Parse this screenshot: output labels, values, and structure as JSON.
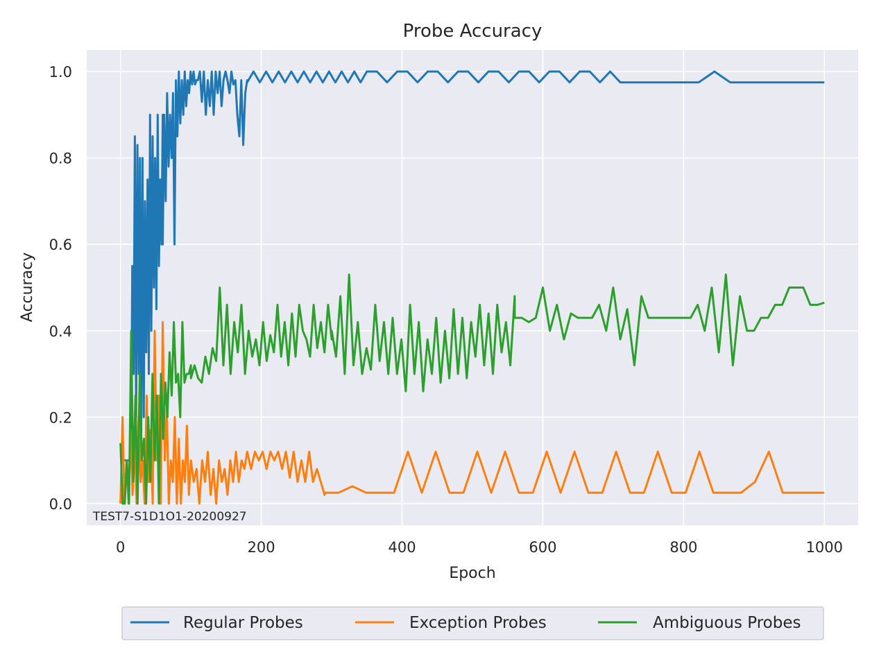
{
  "chart_data": {
    "type": "line",
    "title": "Probe Accuracy",
    "xlabel": "Epoch",
    "ylabel": "Accuracy",
    "xlim": [
      -48,
      1048
    ],
    "ylim": [
      -0.05,
      1.05
    ],
    "x_ticks": [
      0,
      200,
      400,
      600,
      800,
      1000
    ],
    "x_tick_labels": [
      "0",
      "200",
      "400",
      "600",
      "800",
      "1000"
    ],
    "y_ticks": [
      0.0,
      0.2,
      0.4,
      0.6,
      0.8,
      1.0
    ],
    "y_tick_labels": [
      "0.0",
      "0.2",
      "0.4",
      "0.6",
      "0.8",
      "1.0"
    ],
    "grid": true,
    "legend_position": "bottom-center, outside plot",
    "annotation": "TEST7-S1D1O1-20200927",
    "background": "#eaeaf2",
    "series": [
      {
        "name": "Regular Probes",
        "color": "#1f77b4",
        "segments": [
          {
            "x_start": 0,
            "x_end": 15,
            "values": [
              0.1,
              0.1,
              0.1,
              0.1,
              0.1,
              0.1
            ]
          },
          {
            "x_start": 15,
            "x_end": 60,
            "values": [
              0.1,
              0.55,
              0.3,
              0.85,
              0.2,
              0.83,
              0.3,
              0.8,
              0.15,
              0.8,
              0.2,
              0.7,
              0.35,
              0.75,
              0.3,
              0.9,
              0.4,
              0.85,
              0.5,
              0.8,
              0.45,
              0.9,
              0.55,
              0.75,
              0.6,
              0.9
            ]
          },
          {
            "x_start": 60,
            "x_end": 110,
            "values": [
              0.6,
              0.9,
              0.7,
              0.95,
              0.78,
              0.9,
              0.8,
              0.95,
              0.6,
              0.98,
              0.85,
              1.0,
              0.88,
              0.98,
              0.9,
              1.0,
              0.92,
              0.98,
              0.95,
              1.0,
              0.97,
              1.0,
              0.97,
              0.98,
              0.98
            ]
          },
          {
            "x_start": 110,
            "x_end": 180,
            "values": [
              0.98,
              1.0,
              0.93,
              1.0,
              0.9,
              0.98,
              0.92,
              1.0,
              0.9,
              1.0,
              0.95,
              1.0,
              0.92,
              0.98,
              1.0,
              0.98,
              0.95,
              1.0,
              0.97,
              0.98,
              0.9,
              0.85,
              0.98,
              0.83,
              0.95,
              0.98
            ]
          },
          {
            "x_start": 180,
            "x_end": 350,
            "values": [
              0.975,
              1.0,
              0.975,
              1.0,
              0.975,
              1.0,
              0.975,
              1.0,
              0.975,
              1.0,
              0.975,
              1.0,
              0.975,
              1.0,
              0.975,
              1.0,
              0.975,
              1.0,
              0.975,
              1.0
            ]
          },
          {
            "x_start": 350,
            "x_end": 710,
            "values": [
              1.0,
              1.0,
              0.975,
              1.0,
              1.0,
              0.975,
              1.0,
              1.0,
              0.975,
              1.0,
              1.0,
              0.975,
              1.0,
              1.0,
              0.975,
              1.0,
              1.0,
              0.975,
              1.0,
              1.0,
              0.975,
              1.0,
              1.0,
              0.975,
              1.0,
              0.975
            ]
          },
          {
            "x_start": 710,
            "x_end": 1000,
            "values": [
              0.975,
              0.975,
              0.975,
              0.975,
              0.975,
              0.975,
              1.0,
              0.975,
              0.975,
              0.975,
              0.975,
              0.975,
              0.975,
              0.975
            ]
          }
        ]
      },
      {
        "name": "Exception Probes",
        "color": "#ff7f0e",
        "segments": [
          {
            "x_start": 0,
            "x_end": 100,
            "values": [
              0.0,
              0.2,
              0.0,
              0.1,
              0.0,
              0.17,
              0.02,
              0.15,
              0.0,
              0.2,
              0.05,
              0.1,
              0.0,
              0.25,
              0.05,
              0.17,
              0.0,
              0.4,
              0.1,
              0.25,
              0.0,
              0.42,
              0.1,
              0.22,
              0.0,
              0.1,
              0.05,
              0.2,
              0.0,
              0.15,
              0.0,
              0.1,
              0.05,
              0.18,
              0.02,
              0.1
            ]
          },
          {
            "x_start": 100,
            "x_end": 180,
            "values": [
              0.1,
              0.05,
              0.08,
              0.0,
              0.1,
              0.05,
              0.12,
              0.02,
              0.08,
              0.0,
              0.1,
              0.05,
              0.08,
              0.02,
              0.1,
              0.05,
              0.12,
              0.05,
              0.1,
              0.08,
              0.12
            ]
          },
          {
            "x_start": 180,
            "x_end": 290,
            "values": [
              0.12,
              0.08,
              0.12,
              0.1,
              0.12,
              0.08,
              0.12,
              0.1,
              0.12,
              0.08,
              0.12,
              0.06,
              0.12,
              0.05,
              0.1,
              0.05,
              0.12,
              0.05,
              0.08,
              0.05,
              0.02
            ]
          },
          {
            "x_start": 290,
            "x_end": 1000,
            "values": [
              0.025,
              0.025,
              0.04,
              0.025,
              0.025,
              0.025,
              0.12,
              0.025,
              0.12,
              0.025,
              0.025,
              0.12,
              0.025,
              0.12,
              0.025,
              0.025,
              0.12,
              0.025,
              0.12,
              0.025,
              0.025,
              0.12,
              0.025,
              0.025,
              0.12,
              0.025,
              0.025,
              0.12,
              0.025,
              0.025,
              0.025,
              0.05,
              0.12,
              0.025,
              0.025,
              0.025,
              0.025
            ]
          }
        ]
      },
      {
        "name": "Ambiguous Probes",
        "color": "#2ca02c",
        "segments": [
          {
            "x_start": 0,
            "x_end": 100,
            "values": [
              0.14,
              0.0,
              0.0,
              0.1,
              0.0,
              0.4,
              0.05,
              0.25,
              0.0,
              0.3,
              0.1,
              0.15,
              0.0,
              0.2,
              0.05,
              0.3,
              0.1,
              0.25,
              0.0,
              0.3,
              0.15,
              0.28,
              0.2,
              0.35,
              0.25,
              0.42,
              0.28,
              0.3,
              0.2,
              0.42,
              0.28,
              0.3,
              0.3,
              0.32
            ]
          },
          {
            "x_start": 100,
            "x_end": 300,
            "values": [
              0.29,
              0.32,
              0.29,
              0.28,
              0.34,
              0.3,
              0.36,
              0.33,
              0.5,
              0.32,
              0.46,
              0.3,
              0.42,
              0.35,
              0.46,
              0.3,
              0.4,
              0.34,
              0.38,
              0.32,
              0.42,
              0.33,
              0.39,
              0.35,
              0.46,
              0.34,
              0.42,
              0.32,
              0.44,
              0.34,
              0.46,
              0.4,
              0.38,
              0.34,
              0.46,
              0.36,
              0.42,
              0.35,
              0.46,
              0.38
            ]
          },
          {
            "x_start": 300,
            "x_end": 560,
            "values": [
              0.4,
              0.34,
              0.48,
              0.3,
              0.53,
              0.32,
              0.42,
              0.3,
              0.36,
              0.31,
              0.46,
              0.33,
              0.42,
              0.3,
              0.43,
              0.3,
              0.38,
              0.26,
              0.46,
              0.3,
              0.42,
              0.26,
              0.38,
              0.3,
              0.43,
              0.28,
              0.4,
              0.29,
              0.45,
              0.3,
              0.43,
              0.29,
              0.42,
              0.34,
              0.46,
              0.32,
              0.44,
              0.3,
              0.46,
              0.35,
              0.42,
              0.32,
              0.48
            ]
          },
          {
            "x_start": 560,
            "x_end": 1000,
            "values": [
              0.43,
              0.43,
              0.42,
              0.43,
              0.5,
              0.4,
              0.46,
              0.38,
              0.44,
              0.43,
              0.43,
              0.43,
              0.46,
              0.4,
              0.5,
              0.38,
              0.45,
              0.32,
              0.48,
              0.43,
              0.43,
              0.43,
              0.43,
              0.43,
              0.43,
              0.43,
              0.46,
              0.4,
              0.5,
              0.35,
              0.53,
              0.32,
              0.48,
              0.4,
              0.4,
              0.43,
              0.43,
              0.46,
              0.46,
              0.5,
              0.5,
              0.5,
              0.46,
              0.46,
              0.465
            ]
          }
        ]
      }
    ]
  }
}
